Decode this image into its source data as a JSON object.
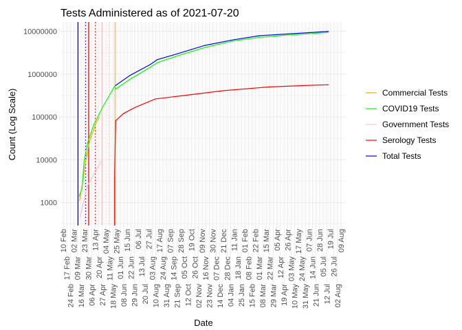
{
  "chart_data": {
    "type": "line",
    "title": "Tests Administered as of 2021-07-20",
    "xlabel": "Date",
    "ylabel": "Count (Log Scale)",
    "y_scale": "log10",
    "ylim": [
      290,
      16500000
    ],
    "y_ticks": [
      1000,
      10000,
      100000,
      1000000,
      10000000
    ],
    "y_tick_labels": [
      "1000",
      "10000",
      "100000",
      "1000000",
      "10000000"
    ],
    "x_range": [
      "2020-02-10",
      "2021-08-09"
    ],
    "x_tick_labels": [
      "10 Feb",
      "17 Feb",
      "24 Feb",
      "02 Mar",
      "09 Mar",
      "16 Mar",
      "23 Mar",
      "30 Mar",
      "06 Apr",
      "13 Apr",
      "20 Apr",
      "27 Apr",
      "04 May",
      "11 May",
      "18 May",
      "25 May",
      "01 Jun",
      "08 Jun",
      "15 Jun",
      "22 Jun",
      "29 Jun",
      "06 Jul",
      "13 Jul",
      "20 Jul",
      "27 Jul",
      "03 Aug",
      "10 Aug",
      "17 Aug",
      "24 Aug",
      "31 Aug",
      "07 Sep",
      "14 Sep",
      "21 Sep",
      "28 Sep",
      "05 Oct",
      "12 Oct",
      "19 Oct",
      "26 Oct",
      "02 Nov",
      "09 Nov",
      "16 Nov",
      "23 Nov",
      "30 Nov",
      "07 Dec",
      "14 Dec",
      "21 Dec",
      "28 Dec",
      "04 Jan",
      "11 Jan",
      "18 Jan",
      "25 Jan",
      "01 Feb",
      "08 Feb",
      "15 Feb",
      "22 Feb",
      "01 Mar",
      "08 Mar",
      "15 Mar",
      "22 Mar",
      "29 Mar",
      "05 Apr",
      "12 Apr",
      "19 Apr",
      "26 Apr",
      "03 May",
      "10 May",
      "17 May",
      "24 May",
      "31 May",
      "07 Jun",
      "14 Jun",
      "21 Jun",
      "28 Jun",
      "05 Jul",
      "12 Jul",
      "19 Jul",
      "26 Jul",
      "02 Aug",
      "09 Aug"
    ],
    "grid": true,
    "legend_position": "right",
    "series": [
      {
        "name": "Commercial Tests",
        "color": "#FFA500",
        "points": [
          [
            "2020-03-13",
            1100
          ],
          [
            "2020-03-18",
            2500
          ],
          [
            "2020-03-25",
            9000
          ],
          [
            "2020-04-01",
            25000
          ],
          [
            "2020-04-14",
            70000
          ],
          [
            "2020-04-21",
            100000
          ]
        ]
      },
      {
        "name": "COVID19 Tests",
        "color": "#00FF00",
        "points": [
          [
            "2020-03-12",
            1380
          ],
          [
            "2020-03-18",
            2140
          ],
          [
            "2020-03-22",
            9300
          ],
          [
            "2020-03-29",
            25000
          ],
          [
            "2020-04-10",
            66000
          ],
          [
            "2020-04-28",
            174000
          ],
          [
            "2020-05-21",
            518000
          ],
          [
            "2020-05-23",
            447000
          ],
          [
            "2020-06-20",
            758000
          ],
          [
            "2020-07-30",
            1440000
          ],
          [
            "2020-08-13",
            1860000
          ],
          [
            "2020-09-22",
            2680000
          ],
          [
            "2020-11-14",
            4170000
          ],
          [
            "2021-01-07",
            5900000
          ],
          [
            "2021-03-02",
            7240000
          ],
          [
            "2021-04-23",
            8100000
          ],
          [
            "2021-06-16",
            8900000
          ],
          [
            "2021-07-16",
            9400000
          ]
        ]
      },
      {
        "name": "Government Tests",
        "color": "#FFC0CB",
        "points": [
          [
            "2020-03-14",
            450
          ],
          [
            "2020-03-28",
            2400
          ],
          [
            "2020-04-25",
            9300
          ]
        ]
      },
      {
        "name": "Serology Tests",
        "color": "#FF0000",
        "points": [
          [
            "2020-05-21",
            290
          ],
          [
            "2020-05-21",
            4500
          ],
          [
            "2020-05-23",
            81000
          ],
          [
            "2020-06-07",
            119000
          ],
          [
            "2020-06-30",
            166000
          ],
          [
            "2020-08-09",
            263000
          ],
          [
            "2020-09-22",
            304000
          ],
          [
            "2020-12-21",
            410000
          ],
          [
            "2021-03-19",
            500000
          ],
          [
            "2021-06-16",
            550000
          ],
          [
            "2021-07-16",
            563000
          ]
        ]
      },
      {
        "name": "Total Tests",
        "color": "#0000FF",
        "points": [
          [
            "2020-05-22",
            532000
          ],
          [
            "2020-06-20",
            929000
          ],
          [
            "2020-07-30",
            1670000
          ],
          [
            "2020-08-13",
            2180000
          ],
          [
            "2020-09-22",
            3000000
          ],
          [
            "2020-11-14",
            4670000
          ],
          [
            "2021-01-07",
            6260000
          ],
          [
            "2021-03-02",
            7910000
          ],
          [
            "2021-04-23",
            8640000
          ],
          [
            "2021-06-16",
            9440000
          ],
          [
            "2021-07-16",
            10000000
          ]
        ]
      }
    ],
    "vlines": [
      {
        "date": "2020-03-10",
        "color": "#0000FF",
        "style": "solid"
      },
      {
        "date": "2020-03-25",
        "color": "#0000FF",
        "style": "dotted"
      },
      {
        "date": "2020-03-31",
        "color": "#FF0000",
        "style": "solid"
      },
      {
        "date": "2020-04-13",
        "color": "#FF0000",
        "style": "dotted"
      },
      {
        "date": "2020-04-26",
        "color": "#FFC0CB",
        "style": "solid"
      },
      {
        "date": "2020-05-10",
        "color": "#FFC0CB",
        "style": "dotted"
      },
      {
        "date": "2020-05-22",
        "color": "#FFC000",
        "style": "solid"
      }
    ]
  }
}
